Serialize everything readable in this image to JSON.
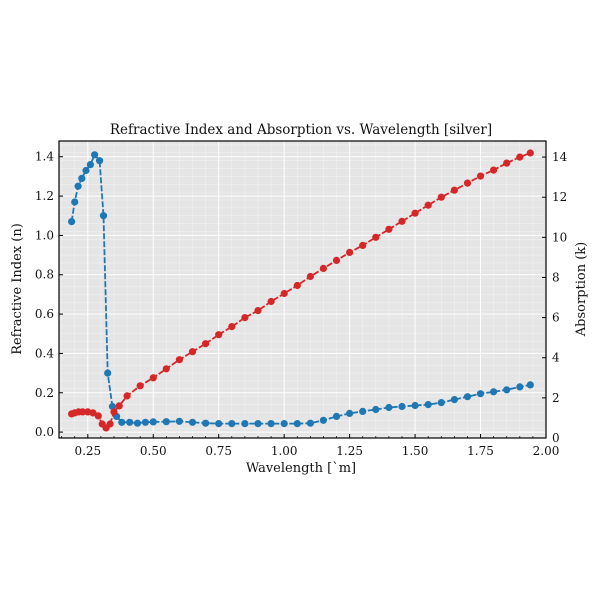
{
  "chart_data": {
    "type": "line",
    "title": "Refractive Index and Absorption vs. Wavelength [silver]",
    "xlabel": "Wavelength [`m]",
    "ylabel_left": "Refractive Index (n)",
    "ylabel_right": "Absorption (k)",
    "xlim": [
      0.14,
      2.0
    ],
    "ylim_left": [
      -0.03,
      1.48
    ],
    "ylim_right": [
      0,
      14.8
    ],
    "xticks": [
      "0.25",
      "0.50",
      "0.75",
      "1.00",
      "1.25",
      "1.50",
      "1.75",
      "2.00"
    ],
    "xtick_values": [
      0.25,
      0.5,
      0.75,
      1.0,
      1.25,
      1.5,
      1.75,
      2.0
    ],
    "yticks_left": [
      "0.0",
      "0.2",
      "0.4",
      "0.6",
      "0.8",
      "1.0",
      "1.2",
      "1.4"
    ],
    "ytick_values_left": [
      0.0,
      0.2,
      0.4,
      0.6,
      0.8,
      1.0,
      1.2,
      1.4
    ],
    "yticks_right": [
      "0",
      "2",
      "4",
      "6",
      "8",
      "10",
      "12",
      "14"
    ],
    "ytick_values_right": [
      0,
      2,
      4,
      6,
      8,
      10,
      12,
      14
    ],
    "grid": true,
    "series": [
      {
        "color": "#1f77b4",
        "axis": "left",
        "points": [
          [
            0.188,
            1.07
          ],
          [
            0.2,
            1.17
          ],
          [
            0.213,
            1.25
          ],
          [
            0.227,
            1.29
          ],
          [
            0.243,
            1.33
          ],
          [
            0.26,
            1.36
          ],
          [
            0.276,
            1.41
          ],
          [
            0.295,
            1.38
          ],
          [
            0.31,
            1.1
          ],
          [
            0.326,
            0.3
          ],
          [
            0.344,
            0.13
          ],
          [
            0.36,
            0.08
          ],
          [
            0.38,
            0.05
          ],
          [
            0.41,
            0.05
          ],
          [
            0.44,
            0.045
          ],
          [
            0.47,
            0.05
          ],
          [
            0.5,
            0.052
          ],
          [
            0.55,
            0.053
          ],
          [
            0.6,
            0.055
          ],
          [
            0.65,
            0.05
          ],
          [
            0.7,
            0.045
          ],
          [
            0.75,
            0.043
          ],
          [
            0.8,
            0.043
          ],
          [
            0.85,
            0.043
          ],
          [
            0.9,
            0.043
          ],
          [
            0.95,
            0.043
          ],
          [
            1.0,
            0.043
          ],
          [
            1.05,
            0.043
          ],
          [
            1.1,
            0.045
          ],
          [
            1.15,
            0.06
          ],
          [
            1.2,
            0.08
          ],
          [
            1.25,
            0.095
          ],
          [
            1.3,
            0.105
          ],
          [
            1.35,
            0.115
          ],
          [
            1.4,
            0.125
          ],
          [
            1.45,
            0.13
          ],
          [
            1.5,
            0.135
          ],
          [
            1.55,
            0.14
          ],
          [
            1.6,
            0.15
          ],
          [
            1.65,
            0.165
          ],
          [
            1.7,
            0.18
          ],
          [
            1.75,
            0.195
          ],
          [
            1.8,
            0.205
          ],
          [
            1.85,
            0.215
          ],
          [
            1.9,
            0.23
          ],
          [
            1.94,
            0.24
          ]
        ]
      },
      {
        "color": "#d62728",
        "axis": "right",
        "points": [
          [
            0.188,
            1.2
          ],
          [
            0.2,
            1.25
          ],
          [
            0.215,
            1.3
          ],
          [
            0.23,
            1.3
          ],
          [
            0.25,
            1.3
          ],
          [
            0.27,
            1.25
          ],
          [
            0.29,
            1.1
          ],
          [
            0.305,
            0.7
          ],
          [
            0.32,
            0.5
          ],
          [
            0.335,
            0.7
          ],
          [
            0.35,
            1.3
          ],
          [
            0.37,
            1.6
          ],
          [
            0.4,
            2.1
          ],
          [
            0.45,
            2.6
          ],
          [
            0.5,
            3.0
          ],
          [
            0.55,
            3.45
          ],
          [
            0.6,
            3.9
          ],
          [
            0.65,
            4.3
          ],
          [
            0.7,
            4.7
          ],
          [
            0.75,
            5.15
          ],
          [
            0.8,
            5.55
          ],
          [
            0.85,
            6.0
          ],
          [
            0.9,
            6.35
          ],
          [
            0.95,
            6.8
          ],
          [
            1.0,
            7.2
          ],
          [
            1.05,
            7.6
          ],
          [
            1.1,
            8.05
          ],
          [
            1.15,
            8.45
          ],
          [
            1.2,
            8.85
          ],
          [
            1.25,
            9.25
          ],
          [
            1.3,
            9.6
          ],
          [
            1.35,
            10.0
          ],
          [
            1.4,
            10.4
          ],
          [
            1.45,
            10.8
          ],
          [
            1.5,
            11.2
          ],
          [
            1.55,
            11.6
          ],
          [
            1.6,
            12.0
          ],
          [
            1.65,
            12.35
          ],
          [
            1.7,
            12.7
          ],
          [
            1.75,
            13.05
          ],
          [
            1.8,
            13.35
          ],
          [
            1.85,
            13.7
          ],
          [
            1.9,
            14.0
          ],
          [
            1.94,
            14.2
          ]
        ]
      }
    ]
  }
}
